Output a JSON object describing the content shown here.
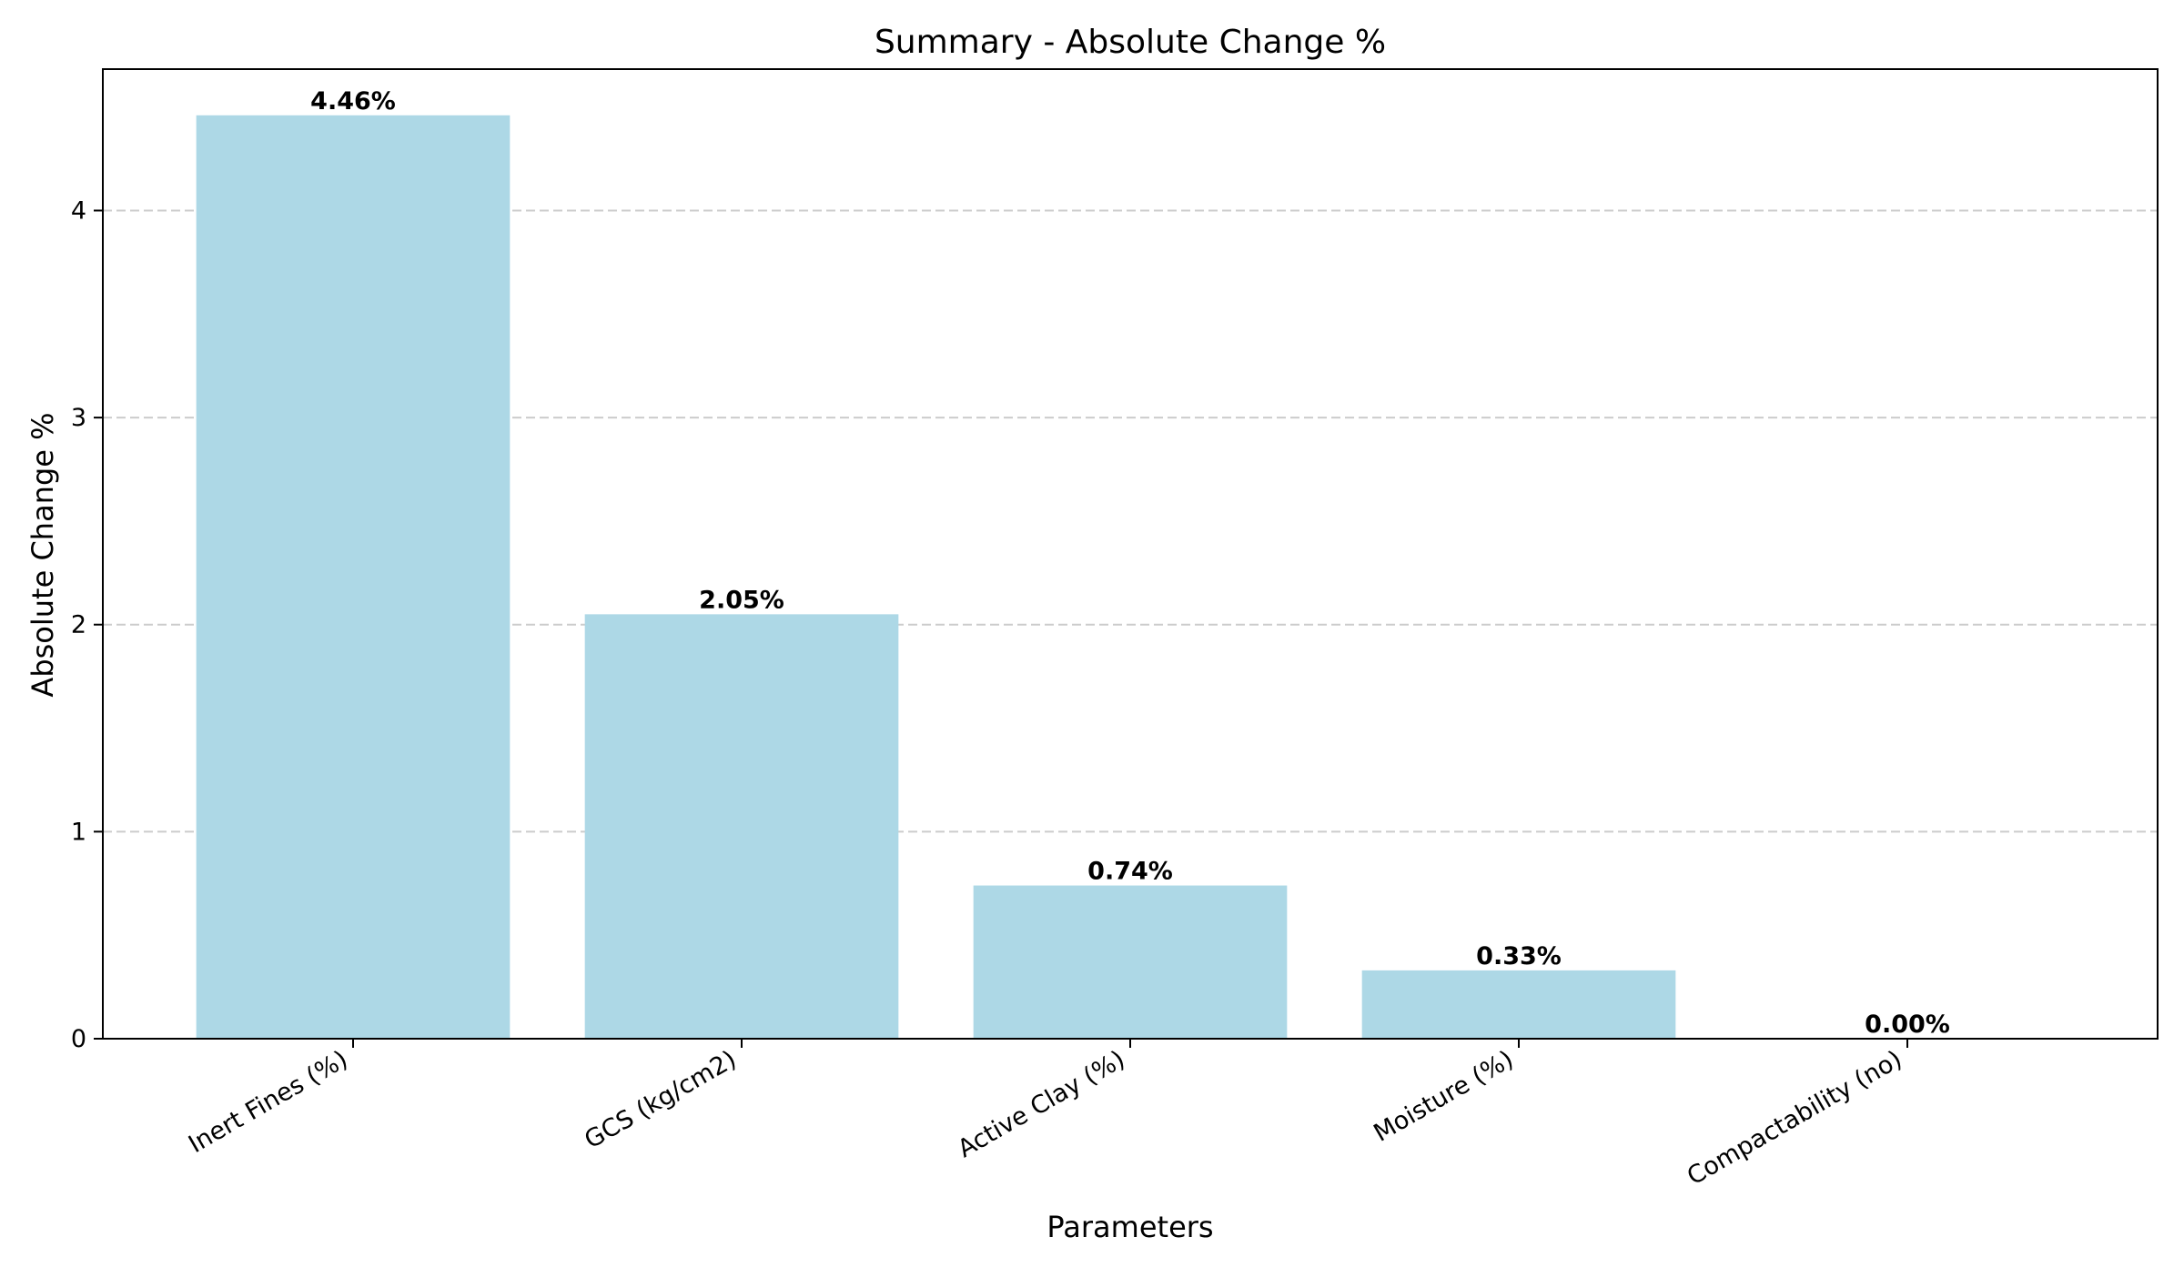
{
  "chart_data": {
    "type": "bar",
    "title": "Summary - Absolute Change %",
    "xlabel": "Parameters",
    "ylabel": "Absolute Change %",
    "categories": [
      "Inert Fines (%)",
      "GCS (kg/cm2)",
      "Active Clay (%)",
      "Moisture (%)",
      "Compactability (no)"
    ],
    "values": [
      4.46,
      2.05,
      0.74,
      0.33,
      0.0
    ],
    "data_labels": [
      "4.46%",
      "2.05%",
      "0.74%",
      "0.33%",
      "0.00%"
    ],
    "yticks": [
      0,
      1,
      2,
      3,
      4
    ],
    "ylim": [
      0,
      4.683
    ],
    "grid": "y-dashed",
    "legend": "none",
    "colors": {
      "bar": "#add8e6",
      "grid": "#cccccc",
      "axis": "#000000",
      "text": "#000000"
    }
  }
}
